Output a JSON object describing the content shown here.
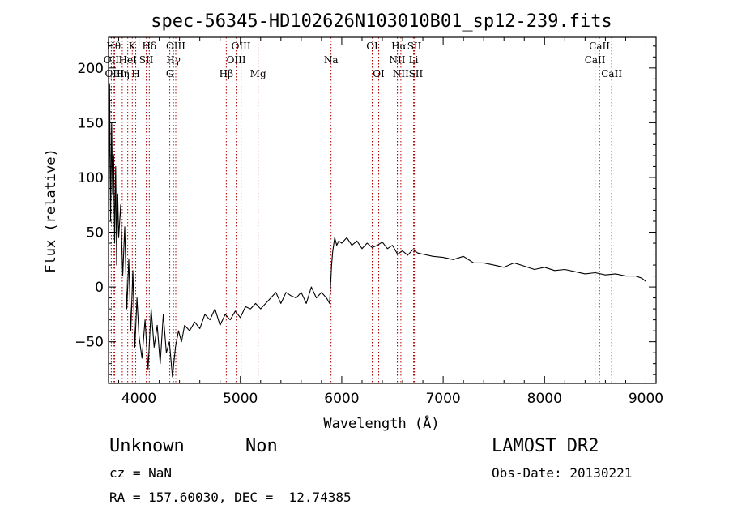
{
  "chart_data": {
    "type": "line",
    "title": "spec-56345-HD102626N103010B01_sp12-239.fits",
    "xlabel": "Wavelength (Å)",
    "ylabel": "Flux (relative)",
    "xlim": [
      3700,
      9100
    ],
    "ylim": [
      -88,
      228
    ],
    "xticks": [
      4000,
      5000,
      6000,
      7000,
      8000,
      9000
    ],
    "yticks": [
      -50,
      0,
      50,
      100,
      150,
      200
    ],
    "xtick_labels": [
      "4000",
      "5000",
      "6000",
      "7000",
      "8000",
      "9000"
    ],
    "ytick_labels": [
      "−50",
      "0",
      "50",
      "100",
      "150",
      "200"
    ],
    "grid": false,
    "series": [
      {
        "x": [
          3700,
          3710,
          3720,
          3730,
          3740,
          3750,
          3760,
          3770,
          3780,
          3790,
          3800,
          3820,
          3840,
          3860,
          3880,
          3900,
          3920,
          3940,
          3960,
          3980,
          4000,
          4030,
          4060,
          4090,
          4120,
          4150,
          4180,
          4210,
          4240,
          4270,
          4300,
          4330,
          4360,
          4390,
          4420,
          4450,
          4500,
          4550,
          4600,
          4650,
          4700,
          4750,
          4800,
          4850,
          4900,
          4950,
          5000,
          5050,
          5100,
          5150,
          5200,
          5250,
          5300,
          5350,
          5400,
          5450,
          5500,
          5550,
          5600,
          5650,
          5700,
          5750,
          5800,
          5850,
          5880,
          5900,
          5910,
          5930,
          5950,
          5970,
          6000,
          6050,
          6100,
          6150,
          6200,
          6250,
          6300,
          6350,
          6400,
          6450,
          6500,
          6550,
          6600,
          6650,
          6700,
          6750,
          6800,
          6900,
          7000,
          7100,
          7200,
          7300,
          7400,
          7500,
          7600,
          7700,
          7800,
          7900,
          8000,
          8100,
          8200,
          8300,
          8400,
          8500,
          8600,
          8700,
          8800,
          8900,
          8960,
          9000
        ],
        "y": [
          30,
          185,
          60,
          150,
          85,
          120,
          40,
          110,
          20,
          85,
          45,
          75,
          10,
          55,
          -20,
          25,
          -40,
          15,
          -55,
          -10,
          -45,
          -65,
          -30,
          -75,
          -20,
          -55,
          -35,
          -70,
          -25,
          -60,
          -50,
          -82,
          -55,
          -40,
          -50,
          -35,
          -40,
          -32,
          -38,
          -25,
          -30,
          -20,
          -35,
          -25,
          -30,
          -22,
          -28,
          -18,
          -20,
          -15,
          -20,
          -15,
          -10,
          -5,
          -15,
          -5,
          -8,
          -10,
          -5,
          -15,
          0,
          -10,
          -5,
          -10,
          -15,
          20,
          32,
          45,
          38,
          42,
          40,
          45,
          38,
          42,
          35,
          40,
          36,
          38,
          41,
          35,
          38,
          30,
          33,
          29,
          34,
          31,
          30,
          28,
          27,
          25,
          28,
          22,
          22,
          20,
          18,
          22,
          19,
          16,
          18,
          15,
          16,
          14,
          12,
          13,
          11,
          12,
          10,
          10,
          8,
          5
        ]
      }
    ],
    "spectral_lines": [
      {
        "label": "OII",
        "wl": 3727,
        "row": 2
      },
      {
        "label": "Hθ",
        "wl": 3750,
        "row": 1
      },
      {
        "label": "OIII",
        "wl": 3760,
        "row": 3
      },
      {
        "label": "Hη",
        "wl": 3835,
        "row": 3
      },
      {
        "label": "K",
        "wl": 3934,
        "row": 1
      },
      {
        "label": "HeI",
        "wl": 3889,
        "row": 2
      },
      {
        "label": "H",
        "wl": 3968,
        "row": 3
      },
      {
        "label": "SII",
        "wl": 4072,
        "row": 2
      },
      {
        "label": "Hδ",
        "wl": 4102,
        "row": 1
      },
      {
        "label": "OIII",
        "wl": 4363,
        "row": 1
      },
      {
        "label": "Hγ",
        "wl": 4340,
        "row": 2
      },
      {
        "label": "G",
        "wl": 4304,
        "row": 3
      },
      {
        "label": "Hβ",
        "wl": 4861,
        "row": 3
      },
      {
        "label": "OIII",
        "wl": 4959,
        "row": 2
      },
      {
        "label": "OIII",
        "wl": 5007,
        "row": 1
      },
      {
        "label": "Mg",
        "wl": 5175,
        "row": 3
      },
      {
        "label": "Na",
        "wl": 5894,
        "row": 2
      },
      {
        "label": "OI",
        "wl": 6300,
        "row": 1
      },
      {
        "label": "OI",
        "wl": 6364,
        "row": 3
      },
      {
        "label": "NII",
        "wl": 6548,
        "row": 2
      },
      {
        "label": "Hα",
        "wl": 6563,
        "row": 1
      },
      {
        "label": "NII",
        "wl": 6583,
        "row": 3
      },
      {
        "label": "SII",
        "wl": 6716,
        "row": 1
      },
      {
        "label": "Li",
        "wl": 6708,
        "row": 2
      },
      {
        "label": "SII",
        "wl": 6731,
        "row": 3
      },
      {
        "label": "CaII",
        "wl": 8498,
        "row": 2
      },
      {
        "label": "CaII",
        "wl": 8542,
        "row": 1
      },
      {
        "label": "CaII",
        "wl": 8662,
        "row": 3
      }
    ]
  },
  "info": {
    "object_class": "Unknown",
    "subclass": "Non",
    "survey": "LAMOST DR2",
    "cz": "cz = NaN",
    "obs_date": "Obs-Date: 20130221",
    "coords": "RA = 157.60030, DEC =  12.74385"
  },
  "colors": {
    "spectrum": "#000000",
    "line_markers": "#b00000",
    "axes": "#000000",
    "background": "#ffffff"
  }
}
